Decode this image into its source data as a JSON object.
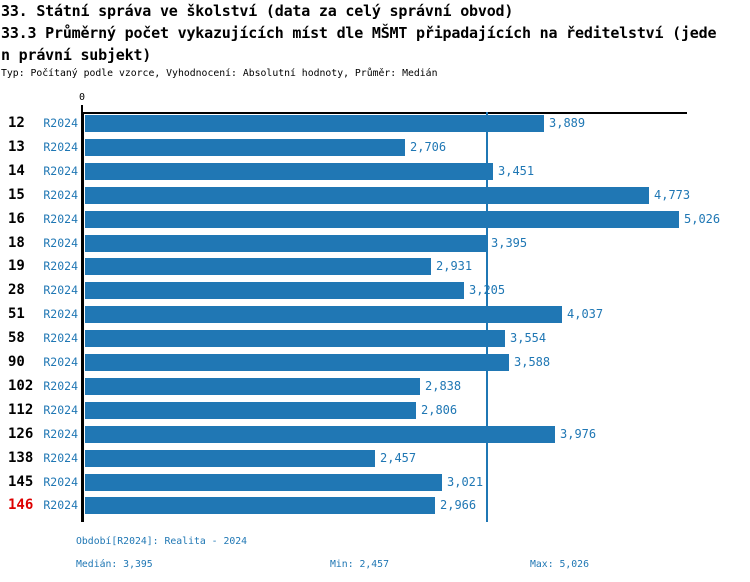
{
  "header": {
    "title_line1": "33. Státní správa ve školství (data za celý správní obvod)",
    "title_line2": "33.3 Průměrný počet vykazujících míst dle MŠMT připadajících na ředitelství (jede",
    "title_line3": "n právní subjekt)",
    "meta_line": "Typ: Počítaný podle vzorce, Vyhodnocení: Absolutní hodnoty, Průměr: Medián"
  },
  "chart_data": {
    "type": "bar",
    "orientation": "horizontal",
    "title": "33.3 Průměrný počet vykazujících míst dle MŠMT připadajících na ředitelství (jeden právní subjekt)",
    "categories": [
      "12",
      "13",
      "14",
      "15",
      "16",
      "18",
      "19",
      "28",
      "51",
      "58",
      "90",
      "102",
      "112",
      "126",
      "138",
      "145",
      "146"
    ],
    "series_label": "R2024",
    "values": [
      3889,
      2706,
      3451,
      4773,
      5026,
      3395,
      2931,
      3205,
      4037,
      3554,
      3588,
      2838,
      2806,
      3976,
      2457,
      3021,
      2966
    ],
    "value_labels": [
      "3,889",
      "2,706",
      "3,451",
      "4,773",
      "5,026",
      "3,395",
      "2,931",
      "3,205",
      "4,037",
      "3,554",
      "3,588",
      "2,838",
      "2,806",
      "3,976",
      "2,457",
      "3,021",
      "2,966"
    ],
    "x_axis_tick": "0",
    "xlim": [
      0,
      5131
    ],
    "grid": false,
    "legend": "none",
    "highlight_category": "146",
    "median_line_value": 3395,
    "median": 3395,
    "min": 2457,
    "max": 5026,
    "bar_color": "#2077b4",
    "text_color": "#1f77b4",
    "highlight_color": "#dd0000"
  },
  "footer": {
    "period_line": "Období[R2024]: Realita - 2024",
    "median_label": "Medián: 3,395",
    "min_label": "Min: 2,457",
    "max_label": "Max: 5,026"
  }
}
